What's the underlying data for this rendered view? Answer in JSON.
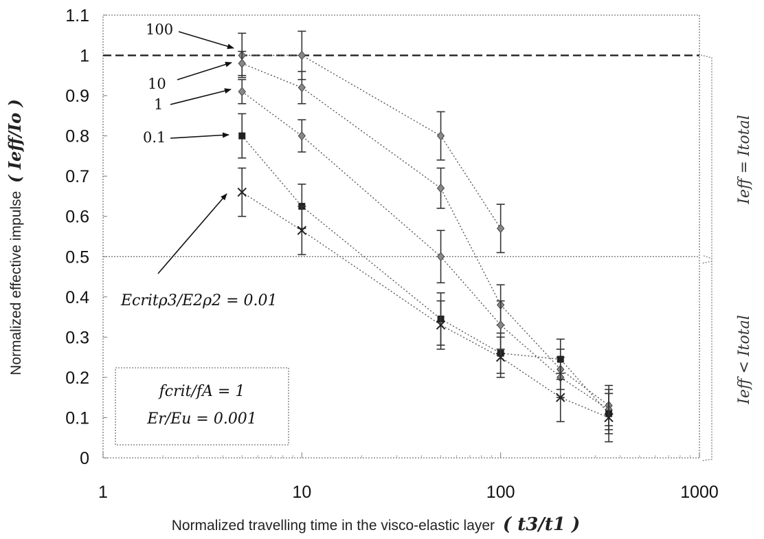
{
  "chart_data": {
    "type": "scatter",
    "title": "",
    "xlabel": "Normalized travelling time in the visco-elastic layer",
    "xlabel_math": "( t3/t1 )",
    "ylabel": "Normalized effective impulse",
    "ylabel_math": "( Ieff/Io )",
    "xscale": "log",
    "xlim": [
      1,
      1000
    ],
    "ylim": [
      0,
      1.1
    ],
    "xticks": [
      "1",
      "10",
      "100",
      "1000"
    ],
    "yticks": [
      "0",
      "0.1",
      "0.2",
      "0.3",
      "0.4",
      "0.5",
      "0.6",
      "0.7",
      "0.8",
      "0.9",
      "1",
      "1.1"
    ],
    "reference_line_y": 1,
    "grid": false,
    "series": [
      {
        "name": "100",
        "marker": "diamond",
        "x": [
          5,
          10,
          50,
          100
        ],
        "y": [
          1.0,
          1.0,
          0.8,
          0.57
        ],
        "err": [
          0.055,
          0.06,
          0.06,
          0.06
        ]
      },
      {
        "name": "10",
        "marker": "diamond",
        "x": [
          5,
          10,
          50,
          100,
          200,
          350
        ],
        "y": [
          0.98,
          0.92,
          0.67,
          0.38,
          0.22,
          0.13
        ],
        "err": [
          0.03,
          0.04,
          0.05,
          0.05,
          0.05,
          0.05
        ]
      },
      {
        "name": "1",
        "marker": "diamond",
        "x": [
          5,
          10,
          50,
          100,
          200,
          350
        ],
        "y": [
          0.91,
          0.8,
          0.5,
          0.33,
          0.2,
          0.12
        ],
        "err": [
          0.03,
          0.04,
          0.065,
          0.06,
          0.05,
          0.05
        ]
      },
      {
        "name": "0.1",
        "marker": "square",
        "x": [
          5,
          10,
          50,
          100,
          200,
          350
        ],
        "y": [
          0.8,
          0.625,
          0.345,
          0.26,
          0.245,
          0.11
        ],
        "err": [
          0.055,
          0.055,
          0.065,
          0.05,
          0.05,
          0.05
        ]
      },
      {
        "name": "0.01",
        "marker": "x",
        "x": [
          5,
          10,
          50,
          100,
          200,
          350
        ],
        "y": [
          0.66,
          0.565,
          0.33,
          0.25,
          0.15,
          0.1
        ],
        "err": [
          0.06,
          0.06,
          0.06,
          0.05,
          0.06,
          0.06
        ]
      }
    ],
    "annotations": {
      "label_100": "100",
      "label_10": "10",
      "label_1": "1",
      "label_01": "0.1",
      "ratio_label": "Ecritρ3/E2ρ2 = 0.01",
      "box_line1": "fcrit/fA = 1",
      "box_line2": "Er/Eu = 0.001",
      "region_upper": "Ieff = Itotal",
      "region_lower": "Ieff < Itotal"
    }
  }
}
